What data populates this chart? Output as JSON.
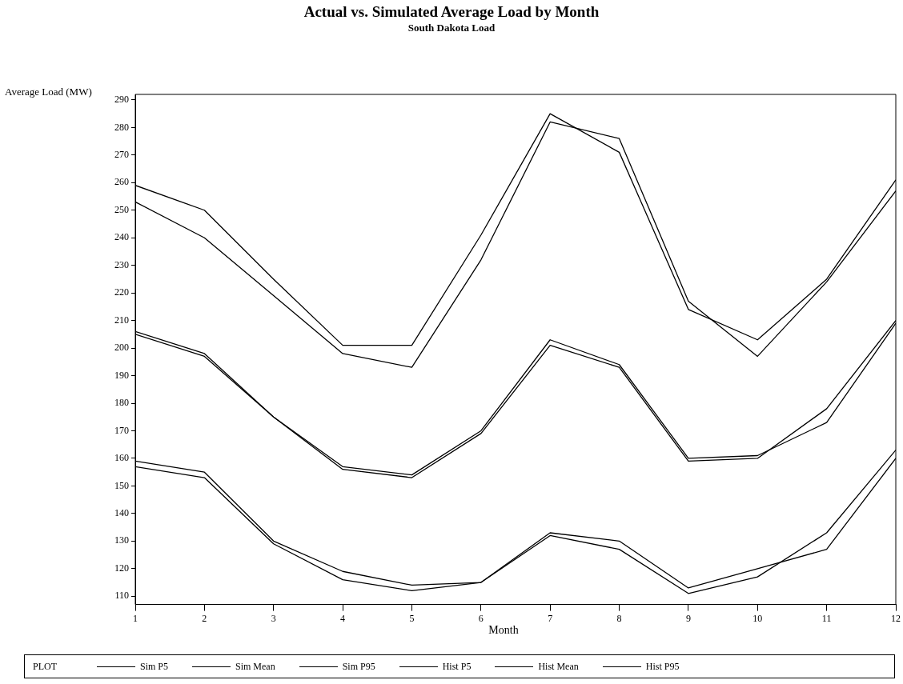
{
  "chart_data": {
    "type": "line",
    "title": "Actual vs. Simulated Average Load by Month",
    "subtitle": "South Dakota Load",
    "xlabel": "Month",
    "ylabel": "Average Load (MW)",
    "legend_title": "PLOT",
    "legend": "bottom",
    "x": [
      1,
      2,
      3,
      4,
      5,
      6,
      7,
      8,
      9,
      10,
      11,
      12
    ],
    "xlim": [
      1,
      12
    ],
    "xticks": [
      1,
      2,
      3,
      4,
      5,
      6,
      7,
      8,
      9,
      10,
      11,
      12
    ],
    "ylim": [
      107,
      292
    ],
    "yticks": [
      110,
      120,
      130,
      140,
      150,
      160,
      170,
      180,
      190,
      200,
      210,
      220,
      230,
      240,
      250,
      260,
      270,
      280,
      290
    ],
    "marker": "none",
    "line_style": "solid",
    "series": [
      {
        "name": "Sim P5",
        "color": "#000000",
        "values": [
          159,
          155,
          130,
          119,
          114,
          115,
          133,
          130,
          113,
          120,
          127,
          160
        ]
      },
      {
        "name": "Sim Mean",
        "color": "#000000",
        "values": [
          206,
          198,
          175,
          157,
          154,
          170,
          203,
          194,
          160,
          161,
          173,
          209
        ]
      },
      {
        "name": "Sim P95",
        "color": "#000000",
        "values": [
          253,
          240,
          219,
          198,
          193,
          232,
          282,
          276,
          217,
          197,
          224,
          257
        ]
      },
      {
        "name": "Hist P5",
        "color": "#000000",
        "values": [
          157,
          153,
          129,
          116,
          112,
          115,
          132,
          127,
          111,
          117,
          133,
          163
        ]
      },
      {
        "name": "Hist Mean",
        "color": "#000000",
        "values": [
          205,
          197,
          175,
          156,
          153,
          169,
          201,
          193,
          159,
          160,
          178,
          210
        ]
      },
      {
        "name": "Hist P95",
        "color": "#000000",
        "values": [
          259,
          250,
          225,
          201,
          201,
          241,
          285,
          271,
          214,
          203,
          225,
          261
        ]
      }
    ]
  }
}
